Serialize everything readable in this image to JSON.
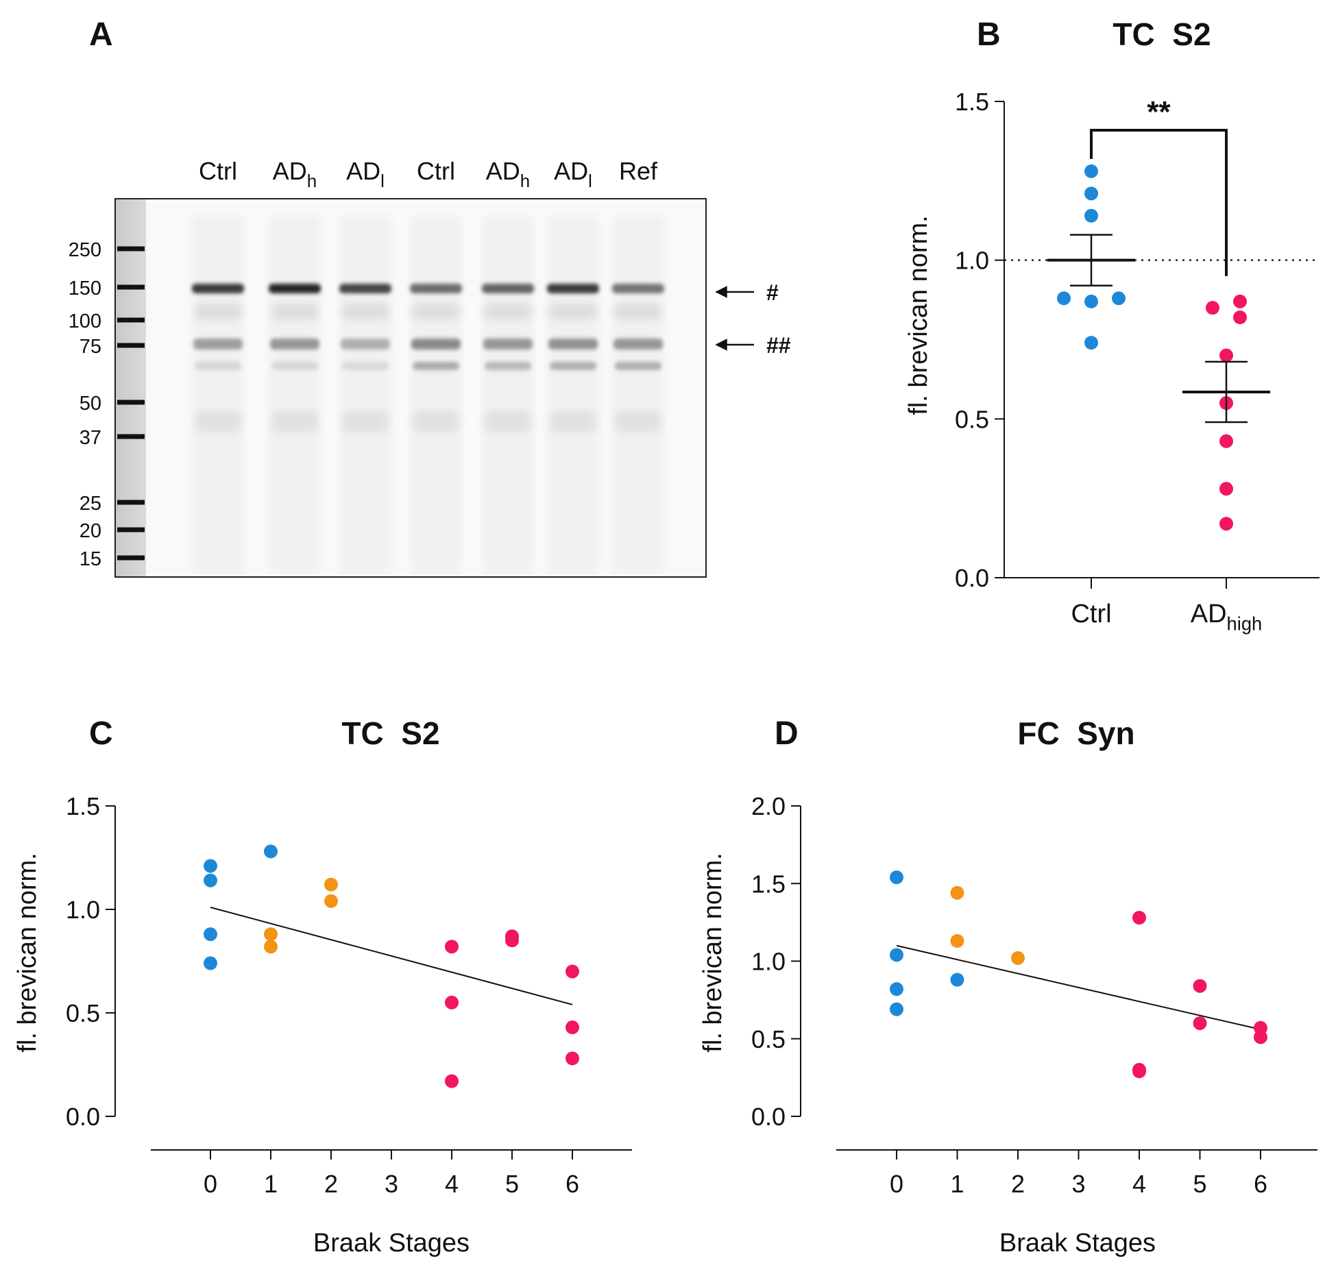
{
  "panels": {
    "A": {
      "label": "A",
      "lanes": [
        {
          "name": "Ctrl",
          "sub": ""
        },
        {
          "name": "AD",
          "sub": "h"
        },
        {
          "name": "AD",
          "sub": "l"
        },
        {
          "name": "Ctrl",
          "sub": ""
        },
        {
          "name": "AD",
          "sub": "h"
        },
        {
          "name": "AD",
          "sub": "l"
        },
        {
          "name": "Ref",
          "sub": ""
        }
      ],
      "markers": [
        "250",
        "150",
        "100",
        "75",
        "50",
        "37",
        "25",
        "20",
        "15"
      ],
      "arrows": [
        "#",
        "##"
      ]
    },
    "B": {
      "label": "B"
    },
    "C": {
      "label": "C"
    },
    "D": {
      "label": "D"
    }
  },
  "colors": {
    "ctrl": "#1e88d8",
    "mid": "#f39314",
    "ad": "#f2155f"
  },
  "chart_data": [
    {
      "id": "B",
      "type": "scatter",
      "title": "TC  S2",
      "ylabel": "fl. brevican norm.",
      "ylim": [
        0,
        1.5
      ],
      "yticks": [
        "0.0",
        "0.5",
        "1.0",
        "1.5"
      ],
      "reference_line": 1.0,
      "categories": [
        {
          "name": "Ctrl",
          "sub": ""
        },
        {
          "name": "AD",
          "sub": "high"
        }
      ],
      "series": [
        {
          "name": "Ctrl",
          "color": "ctrl",
          "values": [
            1.28,
            1.21,
            1.14,
            0.88,
            0.87,
            0.88,
            0.74
          ],
          "mean": 1.0,
          "sem": 0.08
        },
        {
          "name": "ADhigh",
          "color": "ad",
          "values": [
            0.85,
            0.87,
            0.82,
            0.7,
            0.55,
            0.43,
            0.28,
            0.17
          ],
          "mean": 0.585,
          "sem": 0.095
        }
      ],
      "significance": "**"
    },
    {
      "id": "C",
      "type": "scatter",
      "title": "TC  S2",
      "xlabel": "Braak Stages",
      "ylabel": "fl. brevican norm.",
      "xlim": [
        -1,
        7
      ],
      "ylim": [
        0,
        1.5
      ],
      "xticks": [
        0,
        1,
        2,
        3,
        4,
        5,
        6
      ],
      "yticks": [
        "0.0",
        "0.5",
        "1.0",
        "1.5"
      ],
      "points": [
        {
          "x": 0,
          "y": 1.21,
          "g": "ctrl"
        },
        {
          "x": 0,
          "y": 1.14,
          "g": "ctrl"
        },
        {
          "x": 0,
          "y": 0.88,
          "g": "ctrl"
        },
        {
          "x": 0,
          "y": 0.74,
          "g": "ctrl"
        },
        {
          "x": 1,
          "y": 1.28,
          "g": "ctrl"
        },
        {
          "x": 1,
          "y": 0.88,
          "g": "mid"
        },
        {
          "x": 1,
          "y": 0.82,
          "g": "mid"
        },
        {
          "x": 2,
          "y": 1.12,
          "g": "mid"
        },
        {
          "x": 2,
          "y": 1.04,
          "g": "mid"
        },
        {
          "x": 4,
          "y": 0.82,
          "g": "ad"
        },
        {
          "x": 4,
          "y": 0.55,
          "g": "ad"
        },
        {
          "x": 4,
          "y": 0.17,
          "g": "ad"
        },
        {
          "x": 5,
          "y": 0.87,
          "g": "ad"
        },
        {
          "x": 5,
          "y": 0.85,
          "g": "ad"
        },
        {
          "x": 6,
          "y": 0.7,
          "g": "ad"
        },
        {
          "x": 6,
          "y": 0.43,
          "g": "ad"
        },
        {
          "x": 6,
          "y": 0.28,
          "g": "ad"
        }
      ],
      "regression": {
        "x0": 0,
        "y0": 1.01,
        "x1": 6,
        "y1": 0.54
      }
    },
    {
      "id": "D",
      "type": "scatter",
      "title": "FC  Syn",
      "xlabel": "Braak Stages",
      "ylabel": "fl. brevican norm.",
      "xlim": [
        -1,
        7
      ],
      "ylim": [
        0,
        2.0
      ],
      "xticks": [
        0,
        1,
        2,
        3,
        4,
        5,
        6
      ],
      "yticks": [
        "0.0",
        "0.5",
        "1.0",
        "1.5",
        "2.0"
      ],
      "points": [
        {
          "x": 0,
          "y": 1.54,
          "g": "ctrl"
        },
        {
          "x": 0,
          "y": 1.04,
          "g": "ctrl"
        },
        {
          "x": 0,
          "y": 0.82,
          "g": "ctrl"
        },
        {
          "x": 0,
          "y": 0.69,
          "g": "ctrl"
        },
        {
          "x": 1,
          "y": 0.88,
          "g": "ctrl"
        },
        {
          "x": 1,
          "y": 1.44,
          "g": "mid"
        },
        {
          "x": 1,
          "y": 1.13,
          "g": "mid"
        },
        {
          "x": 2,
          "y": 1.02,
          "g": "mid"
        },
        {
          "x": 4,
          "y": 1.28,
          "g": "ad"
        },
        {
          "x": 4,
          "y": 0.3,
          "g": "ad"
        },
        {
          "x": 4,
          "y": 0.29,
          "g": "ad"
        },
        {
          "x": 5,
          "y": 0.84,
          "g": "ad"
        },
        {
          "x": 5,
          "y": 0.6,
          "g": "ad"
        },
        {
          "x": 6,
          "y": 0.57,
          "g": "ad"
        },
        {
          "x": 6,
          "y": 0.51,
          "g": "ad"
        }
      ],
      "regression": {
        "x0": 0,
        "y0": 1.1,
        "x1": 6,
        "y1": 0.56
      }
    }
  ]
}
